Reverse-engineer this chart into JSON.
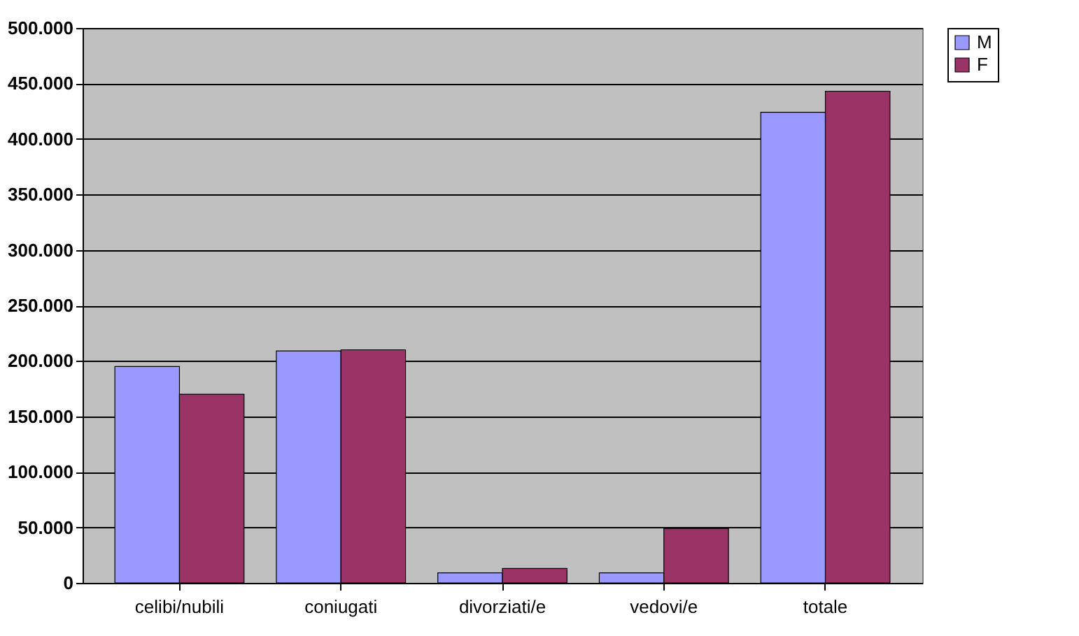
{
  "chart_data": {
    "type": "bar",
    "categories": [
      "celibi/nubili",
      "coniugati",
      "divorziati/e",
      "vedovi/e",
      "totale"
    ],
    "series": [
      {
        "name": "M",
        "color": "#9999ff",
        "values": [
          195000,
          209000,
          9000,
          9000,
          424000
        ]
      },
      {
        "name": "F",
        "color": "#993366",
        "values": [
          170000,
          210000,
          13000,
          49000,
          443000
        ]
      }
    ],
    "ylim": [
      0,
      500000
    ],
    "yticks": [
      {
        "value": 0,
        "label": "0"
      },
      {
        "value": 50000,
        "label": "50.000"
      },
      {
        "value": 100000,
        "label": "100.000"
      },
      {
        "value": 150000,
        "label": "150.000"
      },
      {
        "value": 200000,
        "label": "200.000"
      },
      {
        "value": 250000,
        "label": "250.000"
      },
      {
        "value": 300000,
        "label": "300.000"
      },
      {
        "value": 350000,
        "label": "350.000"
      },
      {
        "value": 400000,
        "label": "400.000"
      },
      {
        "value": 450000,
        "label": "450.000"
      },
      {
        "value": 500000,
        "label": "500.000"
      }
    ],
    "grid": "y",
    "legend": "right"
  }
}
